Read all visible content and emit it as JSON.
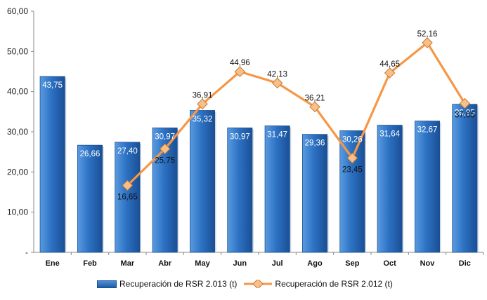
{
  "chart_data": {
    "type": "bar",
    "title": "",
    "xlabel": "",
    "ylabel": "",
    "ylim": [
      0,
      60
    ],
    "yticks": [
      "-",
      "10,00",
      "20,00",
      "30,00",
      "40,00",
      "50,00",
      "60,00"
    ],
    "grid": false,
    "legend_position": "bottom",
    "categories": [
      "Ene",
      "Feb",
      "Mar",
      "Abr",
      "May",
      "Jun",
      "Jul",
      "Ago",
      "Sep",
      "Oct",
      "Nov",
      "Dic"
    ],
    "series": [
      {
        "name": "Recuperación de RSR 2.013 (t)",
        "type": "bar",
        "color": "#2e6fc0",
        "values": [
          43.75,
          26.66,
          27.4,
          30.97,
          35.32,
          30.97,
          31.47,
          29.36,
          30.26,
          31.64,
          32.67,
          36.85
        ],
        "labels": [
          "43,75",
          "26,66",
          "27,40",
          "30,97",
          "35,32",
          "30,97",
          "31,47",
          "29,36",
          "30,26",
          "31,64",
          "32,67",
          "36,85"
        ]
      },
      {
        "name": "Recuperación de RSR 2.012 (t)",
        "type": "line",
        "color": "#f79646",
        "values": [
          null,
          null,
          16.65,
          25.75,
          36.91,
          44.96,
          42.13,
          36.21,
          23.45,
          44.65,
          52.16,
          37.05
        ],
        "labels": [
          null,
          null,
          "16,65",
          "25,75",
          "36,91",
          "44,96",
          "42,13",
          "36,21",
          "23,45",
          "44,65",
          "52,16",
          "37,05"
        ]
      }
    ]
  }
}
